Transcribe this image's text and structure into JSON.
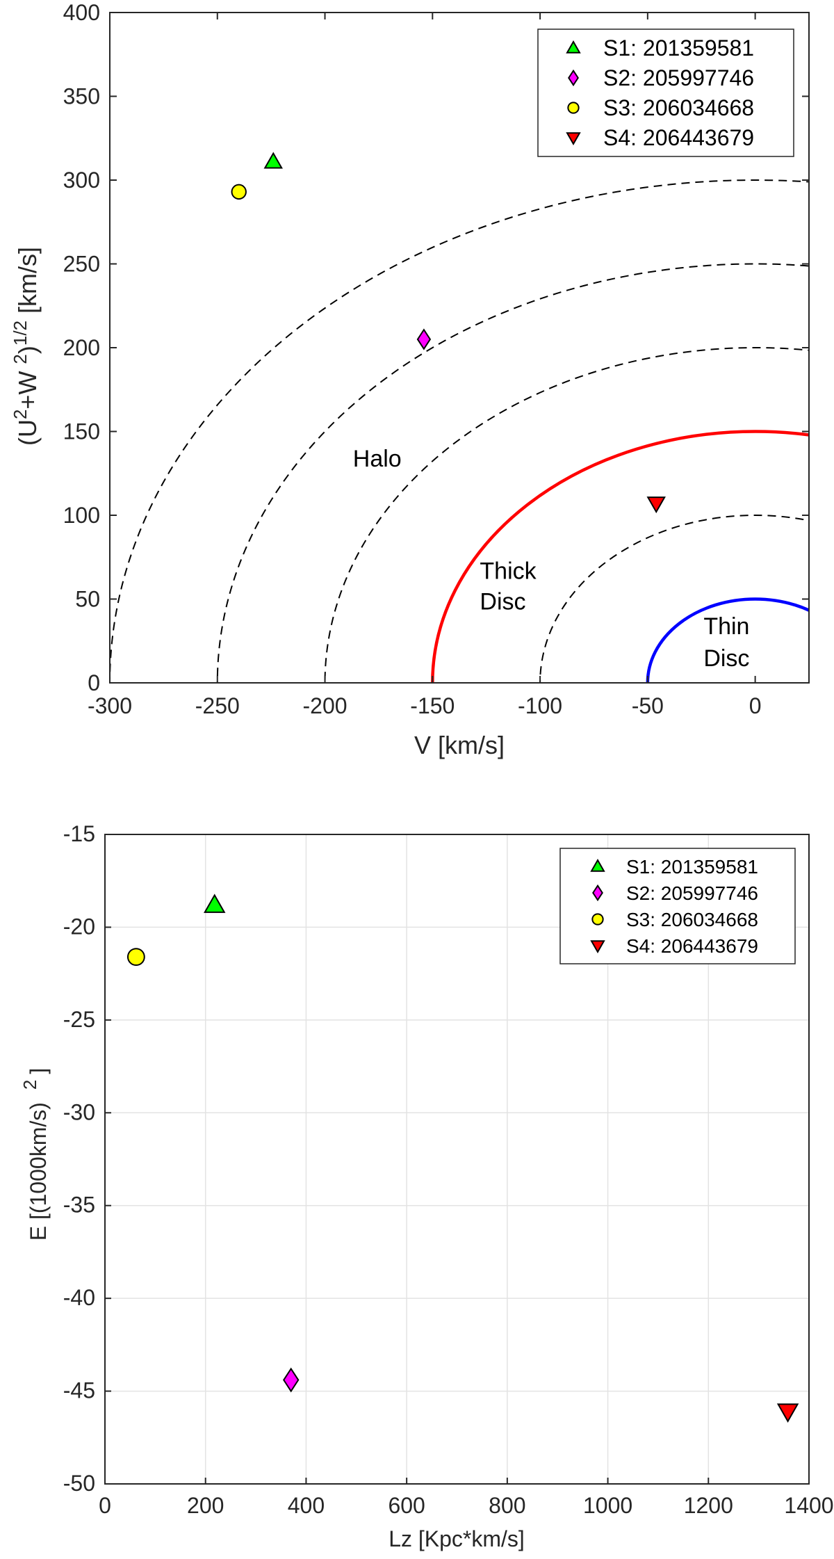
{
  "chart_data": [
    {
      "type": "scatter",
      "title": "",
      "xlabel": "V [km/s]",
      "ylabel": {
        "text": "(U2+W 2)1/2  [km/s]",
        "parts": [
          "(U",
          "2",
          "+W ",
          "2",
          ")",
          "1/2",
          "  [km/s]"
        ]
      },
      "xlim": [
        -300,
        25
      ],
      "ylim": [
        0,
        400
      ],
      "xticks": [
        -300,
        -250,
        -200,
        -150,
        -100,
        -50,
        0
      ],
      "yticks": [
        0,
        50,
        100,
        150,
        200,
        250,
        300,
        350,
        400
      ],
      "grid": false,
      "legend_location": "top-right",
      "series": [
        {
          "name": "S1: 201359581",
          "marker": "triangle-up",
          "color": "#00ff00",
          "points": [
            [
              -224,
              311
            ]
          ]
        },
        {
          "name": "S2: 205997746",
          "marker": "diamond",
          "color": "#ff00ff",
          "points": [
            [
              -154,
              205
            ]
          ]
        },
        {
          "name": "S3: 206034668",
          "marker": "circle",
          "color": "#ffff00",
          "points": [
            [
              -240,
              293
            ]
          ]
        },
        {
          "name": "S4: 206443679",
          "marker": "triangle-down",
          "color": "#ff0000",
          "points": [
            [
              -46,
              107
            ]
          ]
        }
      ],
      "curves": [
        {
          "radius": 300,
          "style": "dashed",
          "color": "#000000"
        },
        {
          "radius": 250,
          "style": "dashed",
          "color": "#000000"
        },
        {
          "radius": 200,
          "style": "dashed",
          "color": "#000000"
        },
        {
          "radius": 150,
          "style": "solid",
          "color": "#ff0000"
        },
        {
          "radius": 100,
          "style": "dashed",
          "color": "#000000"
        },
        {
          "radius": 50,
          "style": "solid",
          "color": "#0000ff"
        }
      ],
      "annotations": [
        {
          "id": "halo",
          "lines": [
            "Halo"
          ],
          "at": [
            -187,
            134
          ]
        },
        {
          "id": "thick-disc",
          "lines": [
            "Thick",
            "Disc"
          ],
          "at": [
            -128,
            62
          ]
        },
        {
          "id": "thin-disc",
          "lines": [
            "Thin",
            "Disc"
          ],
          "at": [
            -24,
            29
          ]
        }
      ]
    },
    {
      "type": "scatter",
      "title": "",
      "xlabel": "Lz [Kpc*km/s]",
      "ylabel": {
        "text": "E [(1000km/s) 2]",
        "parts": [
          "E [(1000km/s)",
          "2",
          "]"
        ]
      },
      "xlim": [
        0,
        1400
      ],
      "ylim": [
        -50,
        -15
      ],
      "xticks": [
        0,
        200,
        400,
        600,
        800,
        1000,
        1200,
        1400
      ],
      "yticks": [
        -50,
        -45,
        -40,
        -35,
        -30,
        -25,
        -20,
        -15
      ],
      "grid": true,
      "legend_location": "top-right",
      "series": [
        {
          "name": "S1: 201359581",
          "marker": "triangle-up",
          "color": "#00ff00",
          "points": [
            [
              218,
              -18.8
            ]
          ]
        },
        {
          "name": "S2: 205997746",
          "marker": "diamond",
          "color": "#ff00ff",
          "points": [
            [
              370,
              -44.4
            ]
          ]
        },
        {
          "name": "S3: 206034668",
          "marker": "circle",
          "color": "#ffff00",
          "points": [
            [
              62,
              -21.6
            ]
          ]
        },
        {
          "name": "S4: 206443679",
          "marker": "triangle-down",
          "color": "#ff0000",
          "points": [
            [
              1358,
              -46.1
            ]
          ]
        }
      ]
    }
  ]
}
